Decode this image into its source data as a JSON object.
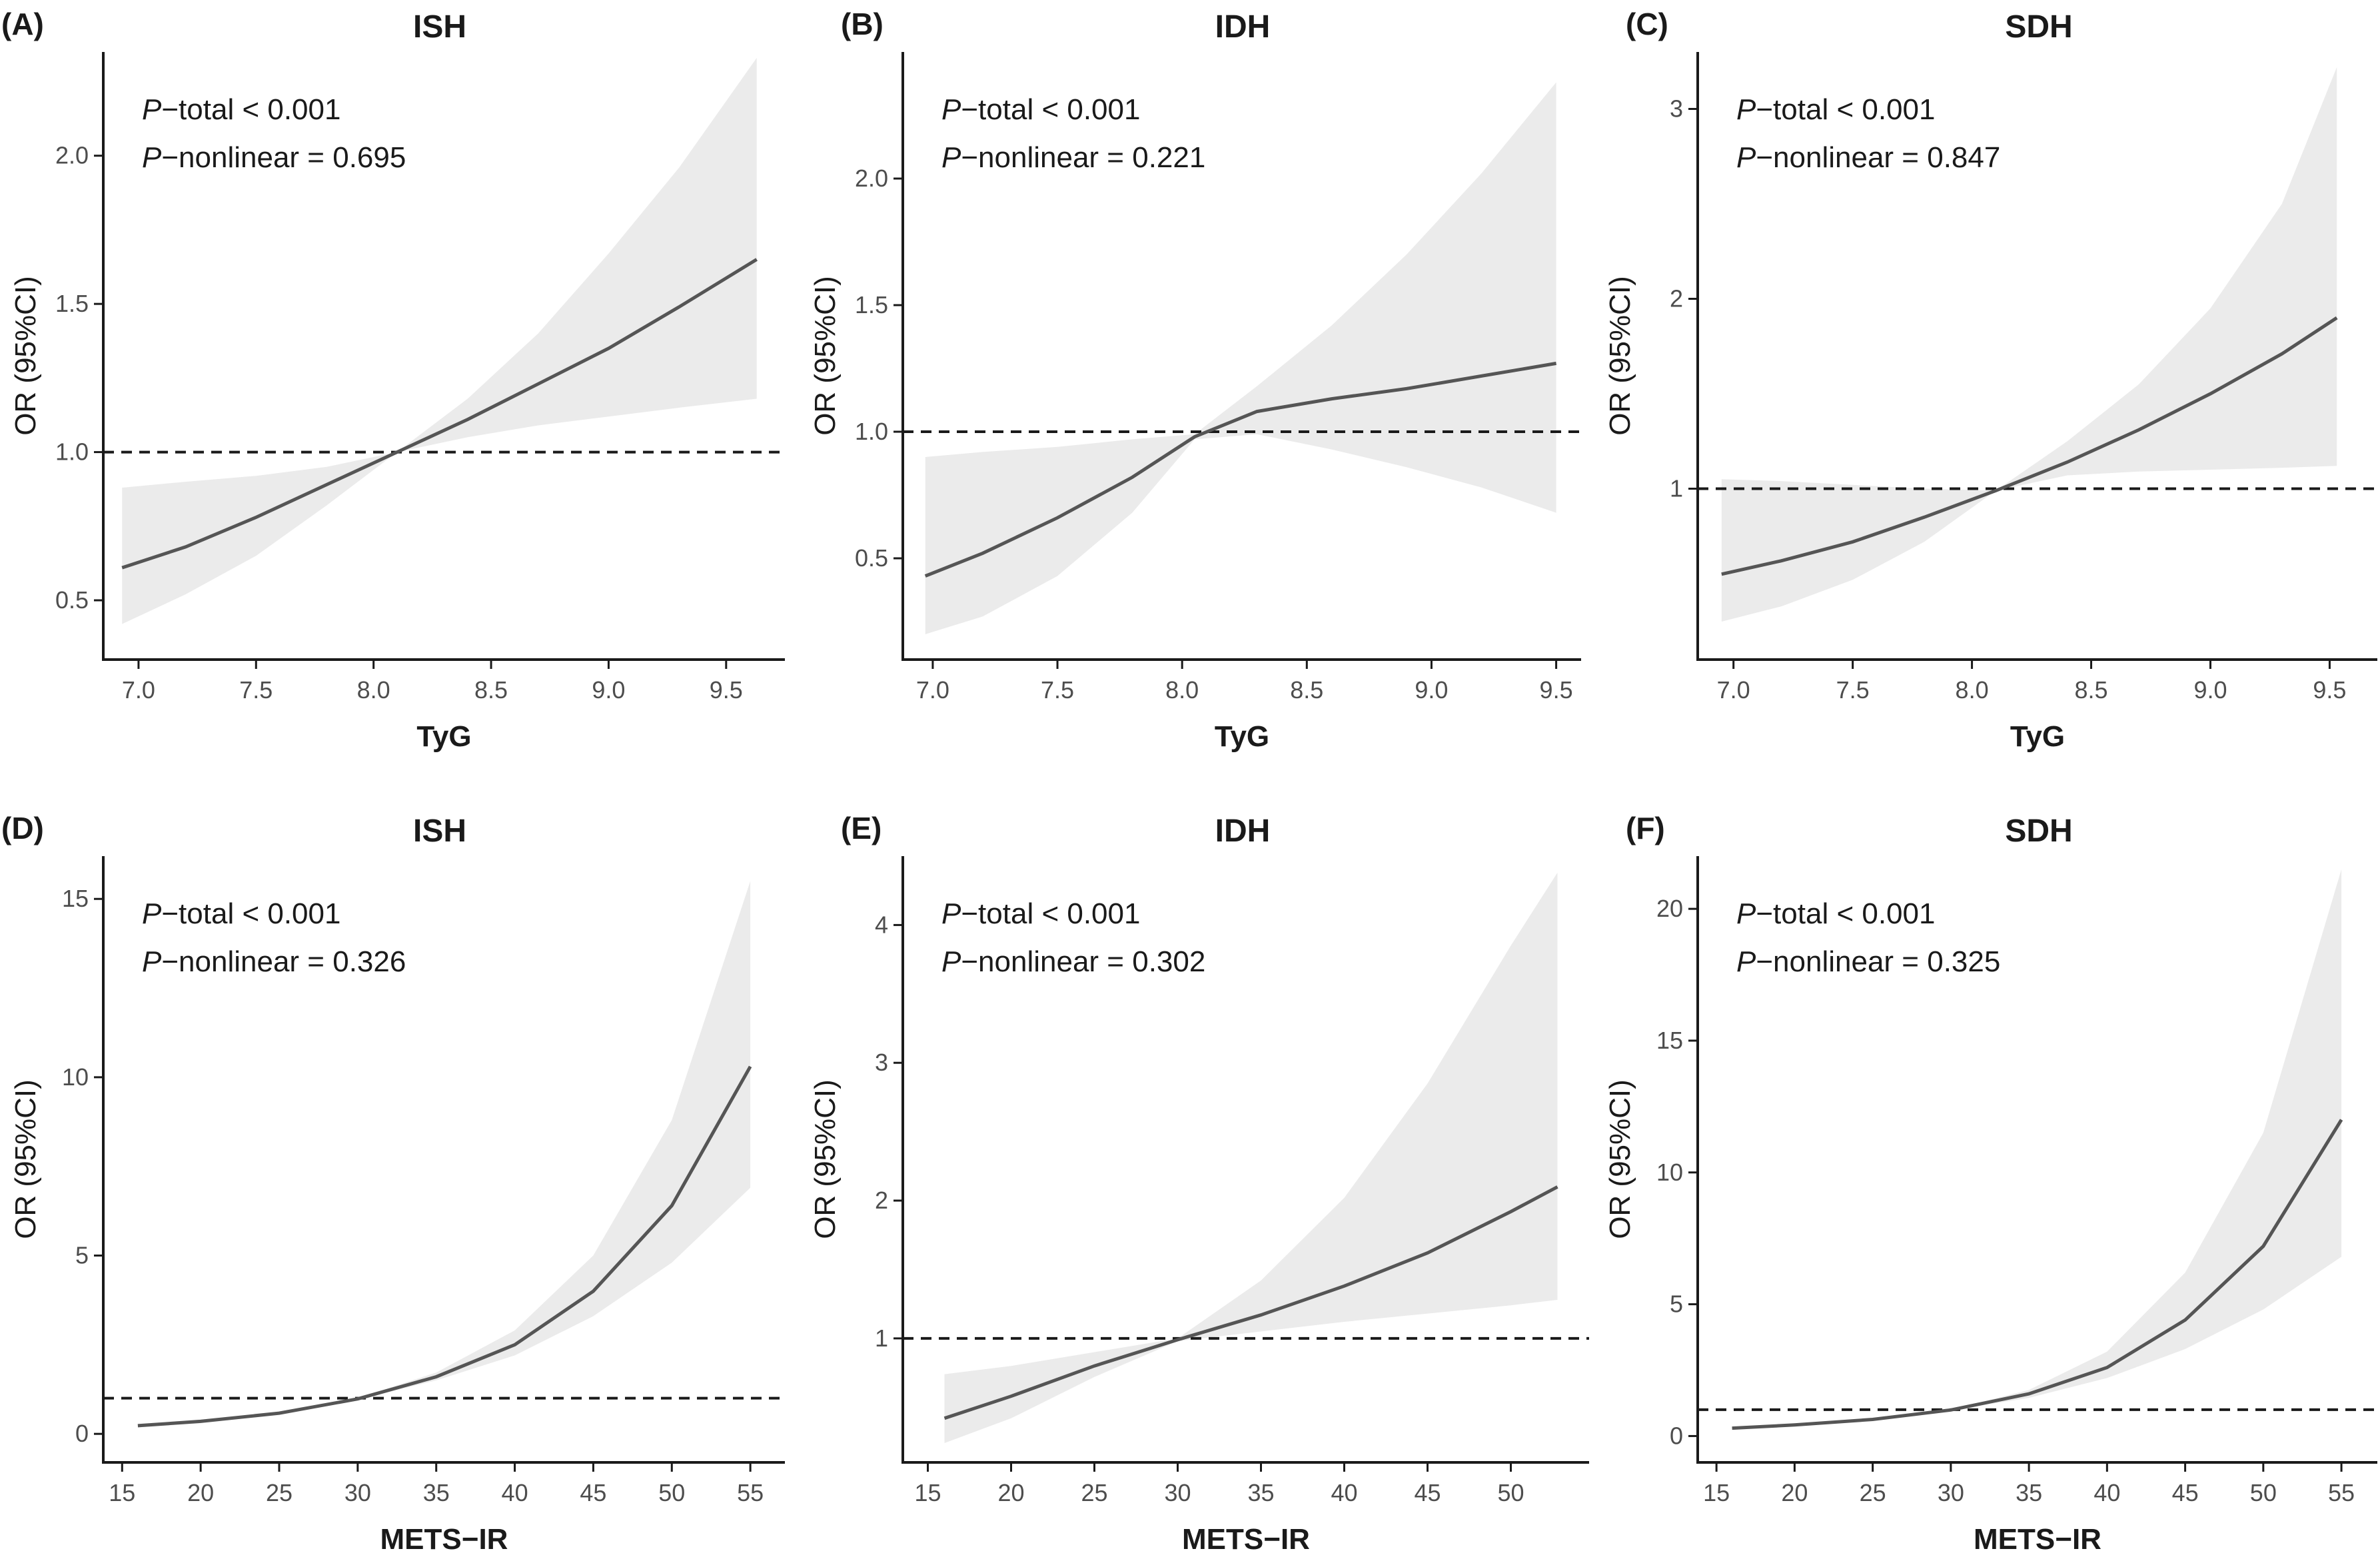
{
  "chart_data": [
    {
      "type": "line",
      "label": "(A)",
      "title": "ISH",
      "xlabel": "TyG",
      "ylabel": "OR (95%CI)",
      "xlim": [
        6.85,
        9.75
      ],
      "ylim": [
        0.3,
        2.35
      ],
      "xticks": [
        7.0,
        7.5,
        8.0,
        8.5,
        9.0,
        9.5
      ],
      "xtick_labels": [
        "7.0",
        "7.5",
        "8.0",
        "8.5",
        "9.0",
        "9.5"
      ],
      "yticks": [
        0.5,
        1.0,
        1.5,
        2.0
      ],
      "ytick_labels": [
        "0.5",
        "1.0",
        "1.5",
        "2.0"
      ],
      "reference_y": 1.0,
      "p_symbol": "P",
      "p_total_text": "−total < 0.001",
      "p_nonlinear_text": "−nonlinear = 0.695",
      "series": [
        {
          "name": "OR",
          "x": [
            6.93,
            7.2,
            7.5,
            7.8,
            8.1,
            8.4,
            8.7,
            9.0,
            9.3,
            9.63
          ],
          "values": [
            0.61,
            0.68,
            0.78,
            0.89,
            1.0,
            1.11,
            1.23,
            1.35,
            1.49,
            1.65
          ]
        },
        {
          "name": "Upper 95% CI",
          "x": [
            6.93,
            7.2,
            7.5,
            7.8,
            8.1,
            8.4,
            8.7,
            9.0,
            9.3,
            9.63
          ],
          "values": [
            0.88,
            0.9,
            0.92,
            0.95,
            1.0,
            1.18,
            1.4,
            1.67,
            1.96,
            2.33
          ]
        },
        {
          "name": "Lower 95% CI",
          "x": [
            6.93,
            7.2,
            7.5,
            7.8,
            8.1,
            8.4,
            8.7,
            9.0,
            9.3,
            9.63
          ],
          "values": [
            0.42,
            0.52,
            0.65,
            0.82,
            1.0,
            1.05,
            1.09,
            1.12,
            1.15,
            1.18
          ]
        }
      ]
    },
    {
      "type": "line",
      "label": "(B)",
      "title": "IDH",
      "xlabel": "TyG",
      "ylabel": "OR (95%CI)",
      "xlim": [
        6.88,
        9.6
      ],
      "ylim": [
        0.1,
        2.5
      ],
      "xticks": [
        7.0,
        7.5,
        8.0,
        8.5,
        9.0,
        9.5
      ],
      "xtick_labels": [
        "7.0",
        "7.5",
        "8.0",
        "8.5",
        "9.0",
        "9.5"
      ],
      "yticks": [
        0.5,
        1.0,
        1.5,
        2.0
      ],
      "ytick_labels": [
        "0.5",
        "1.0",
        "1.5",
        "2.0"
      ],
      "reference_y": 1.0,
      "p_symbol": "P",
      "p_total_text": "−total < 0.001",
      "p_nonlinear_text": "−nonlinear = 0.221",
      "series": [
        {
          "name": "OR",
          "x": [
            6.97,
            7.2,
            7.5,
            7.8,
            8.05,
            8.3,
            8.6,
            8.9,
            9.2,
            9.5
          ],
          "values": [
            0.43,
            0.52,
            0.66,
            0.82,
            0.98,
            1.08,
            1.13,
            1.17,
            1.22,
            1.27
          ]
        },
        {
          "name": "Upper 95% CI",
          "x": [
            6.97,
            7.2,
            7.5,
            7.8,
            8.05,
            8.3,
            8.6,
            8.9,
            9.2,
            9.5
          ],
          "values": [
            0.9,
            0.92,
            0.94,
            0.97,
            0.99,
            1.18,
            1.42,
            1.7,
            2.02,
            2.38
          ]
        },
        {
          "name": "Lower 95% CI",
          "x": [
            6.97,
            7.2,
            7.5,
            7.8,
            8.05,
            8.3,
            8.6,
            8.9,
            9.2,
            9.5
          ],
          "values": [
            0.2,
            0.27,
            0.43,
            0.68,
            0.97,
            0.99,
            0.93,
            0.86,
            0.78,
            0.68
          ]
        }
      ]
    },
    {
      "type": "line",
      "label": "(C)",
      "title": "SDH",
      "xlabel": "TyG",
      "ylabel": "OR (95%CI)",
      "xlim": [
        6.85,
        9.7
      ],
      "ylim": [
        0.1,
        3.3
      ],
      "xticks": [
        7.0,
        7.5,
        8.0,
        8.5,
        9.0,
        9.5
      ],
      "xtick_labels": [
        "7.0",
        "7.5",
        "8.0",
        "8.5",
        "9.0",
        "9.5"
      ],
      "yticks": [
        1,
        2,
        3
      ],
      "ytick_labels": [
        "1",
        "2",
        "3"
      ],
      "reference_y": 1.0,
      "p_symbol": "P",
      "p_total_text": "−total < 0.001",
      "p_nonlinear_text": "−nonlinear = 0.847",
      "series": [
        {
          "name": "OR",
          "x": [
            6.95,
            7.2,
            7.5,
            7.8,
            8.1,
            8.4,
            8.7,
            9.0,
            9.3,
            9.53
          ],
          "values": [
            0.55,
            0.62,
            0.72,
            0.85,
            0.99,
            1.14,
            1.31,
            1.5,
            1.71,
            1.9
          ]
        },
        {
          "name": "Upper 95% CI",
          "x": [
            6.95,
            7.2,
            7.5,
            7.8,
            8.1,
            8.4,
            8.7,
            9.0,
            9.3,
            9.53
          ],
          "values": [
            1.05,
            1.04,
            1.02,
            1.0,
            0.99,
            1.25,
            1.55,
            1.95,
            2.5,
            3.22
          ]
        },
        {
          "name": "Lower 95% CI",
          "x": [
            6.95,
            7.2,
            7.5,
            7.8,
            8.1,
            8.4,
            8.7,
            9.0,
            9.3,
            9.53
          ],
          "values": [
            0.3,
            0.38,
            0.52,
            0.72,
            0.99,
            1.07,
            1.09,
            1.1,
            1.11,
            1.12
          ]
        }
      ]
    },
    {
      "type": "line",
      "label": "(D)",
      "title": "ISH",
      "xlabel": "METS−IR",
      "ylabel": "OR (95%CI)",
      "xlim": [
        13.8,
        57.2
      ],
      "ylim": [
        -0.8,
        16.2
      ],
      "xticks": [
        15,
        20,
        25,
        30,
        35,
        40,
        45,
        50,
        55
      ],
      "xtick_labels": [
        "15",
        "20",
        "25",
        "30",
        "35",
        "40",
        "45",
        "50",
        "55"
      ],
      "yticks": [
        0,
        5,
        10,
        15
      ],
      "ytick_labels": [
        "0",
        "5",
        "10",
        "15"
      ],
      "reference_y": 1.0,
      "p_symbol": "P",
      "p_total_text": "−total < 0.001",
      "p_nonlinear_text": "−nonlinear = 0.326",
      "series": [
        {
          "name": "OR",
          "x": [
            16,
            20,
            25,
            30,
            35,
            40,
            45,
            50,
            55
          ],
          "values": [
            0.23,
            0.35,
            0.58,
            0.98,
            1.6,
            2.5,
            4.0,
            6.4,
            10.3
          ]
        },
        {
          "name": "Upper 95% CI",
          "x": [
            16,
            20,
            25,
            30,
            35,
            40,
            45,
            50,
            55
          ],
          "values": [
            0.28,
            0.4,
            0.62,
            1.0,
            1.72,
            2.9,
            5.0,
            8.8,
            15.5
          ]
        },
        {
          "name": "Lower 95% CI",
          "x": [
            16,
            20,
            25,
            30,
            35,
            40,
            45,
            50,
            55
          ],
          "values": [
            0.18,
            0.3,
            0.54,
            0.96,
            1.5,
            2.2,
            3.3,
            4.8,
            6.9
          ]
        }
      ]
    },
    {
      "type": "line",
      "label": "(E)",
      "title": "IDH",
      "xlabel": "METS−IR",
      "ylabel": "OR (95%CI)",
      "xlim": [
        13.5,
        54.7
      ],
      "ylim": [
        0.1,
        4.5
      ],
      "xticks": [
        15,
        20,
        25,
        30,
        35,
        40,
        45,
        50
      ],
      "xtick_labels": [
        "15",
        "20",
        "25",
        "30",
        "35",
        "40",
        "45",
        "50"
      ],
      "yticks": [
        1,
        2,
        3,
        4
      ],
      "ytick_labels": [
        "1",
        "2",
        "3",
        "4"
      ],
      "reference_y": 1.0,
      "p_symbol": "P",
      "p_total_text": "−total < 0.001",
      "p_nonlinear_text": "−nonlinear = 0.302",
      "series": [
        {
          "name": "OR",
          "x": [
            16,
            20,
            25,
            30,
            35,
            40,
            45,
            50,
            52.8
          ],
          "values": [
            0.42,
            0.58,
            0.8,
            0.99,
            1.17,
            1.38,
            1.62,
            1.92,
            2.1
          ]
        },
        {
          "name": "Upper 95% CI",
          "x": [
            16,
            20,
            25,
            30,
            35,
            40,
            45,
            50,
            52.8
          ],
          "values": [
            0.74,
            0.8,
            0.9,
            1.0,
            1.42,
            2.02,
            2.85,
            3.85,
            4.38
          ]
        },
        {
          "name": "Lower 95% CI",
          "x": [
            16,
            20,
            25,
            30,
            35,
            40,
            45,
            50,
            52.8
          ],
          "values": [
            0.24,
            0.42,
            0.72,
            0.98,
            1.05,
            1.12,
            1.18,
            1.24,
            1.28
          ]
        }
      ]
    },
    {
      "type": "line",
      "label": "(F)",
      "title": "SDH",
      "xlabel": "METS−IR",
      "ylabel": "OR (95%CI)",
      "xlim": [
        13.8,
        57.3
      ],
      "ylim": [
        -1.0,
        22.0
      ],
      "xticks": [
        15,
        20,
        25,
        30,
        35,
        40,
        45,
        50,
        55
      ],
      "xtick_labels": [
        "15",
        "20",
        "25",
        "30",
        "35",
        "40",
        "45",
        "50",
        "55"
      ],
      "yticks": [
        0,
        5,
        10,
        15,
        20
      ],
      "ytick_labels": [
        "0",
        "5",
        "10",
        "15",
        "20"
      ],
      "reference_y": 1.0,
      "p_symbol": "P",
      "p_total_text": "−total < 0.001",
      "p_nonlinear_text": "−nonlinear = 0.325",
      "series": [
        {
          "name": "OR",
          "x": [
            16,
            20,
            25,
            30,
            35,
            40,
            45,
            50,
            55
          ],
          "values": [
            0.3,
            0.42,
            0.63,
            0.99,
            1.6,
            2.6,
            4.4,
            7.2,
            12.0
          ]
        },
        {
          "name": "Upper 95% CI",
          "x": [
            16,
            20,
            25,
            30,
            35,
            40,
            45,
            50,
            55
          ],
          "values": [
            0.35,
            0.47,
            0.68,
            1.0,
            1.75,
            3.2,
            6.2,
            11.5,
            21.5
          ]
        },
        {
          "name": "Lower 95% CI",
          "x": [
            16,
            20,
            25,
            30,
            35,
            40,
            45,
            50,
            55
          ],
          "values": [
            0.25,
            0.37,
            0.58,
            0.97,
            1.45,
            2.2,
            3.3,
            4.8,
            6.8
          ]
        }
      ]
    }
  ]
}
